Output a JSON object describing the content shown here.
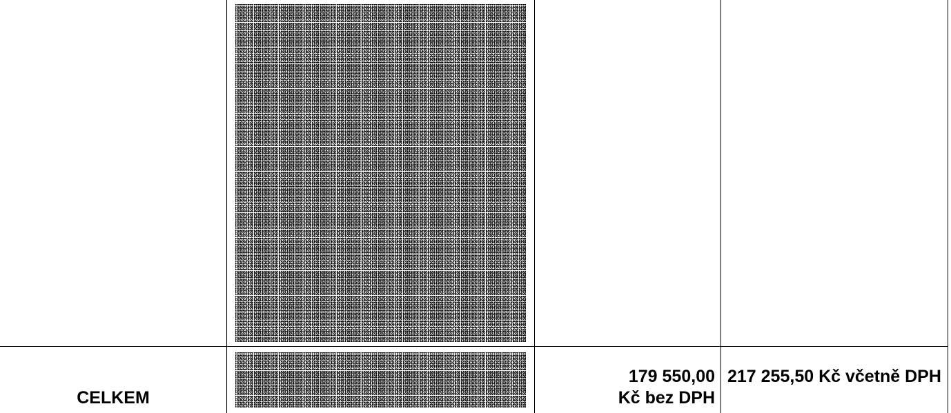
{
  "totals": {
    "label": "CELKEM",
    "net_amount": "179 550,00",
    "net_suffix": "Kč bez DPH",
    "gross_text": "217 255,50 Kč včetně DPH"
  }
}
